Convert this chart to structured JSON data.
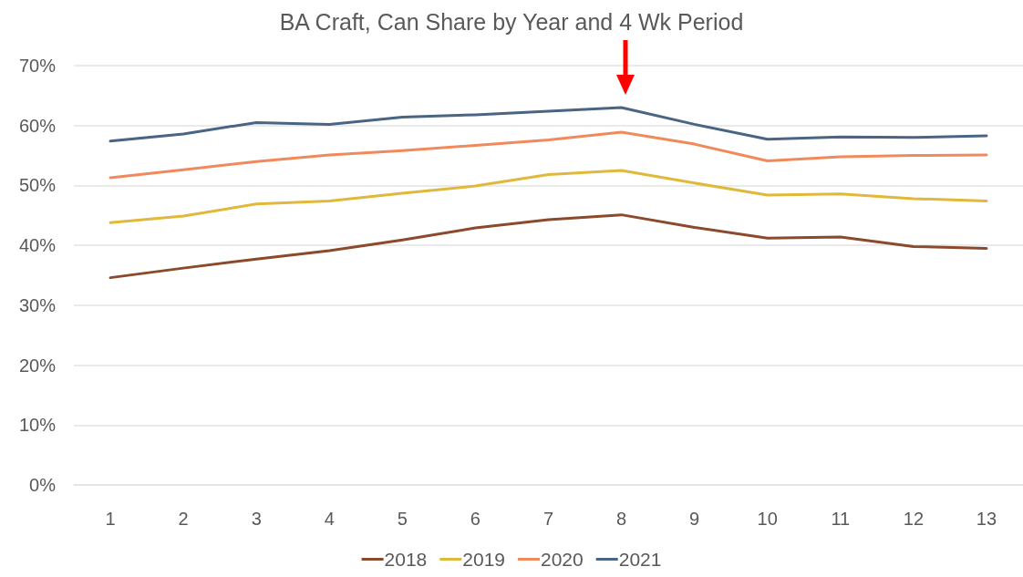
{
  "chart_data": {
    "type": "line",
    "title": "BA Craft, Can Share by Year and 4 Wk Period",
    "x": [
      1,
      2,
      3,
      4,
      5,
      6,
      7,
      8,
      9,
      10,
      11,
      12,
      13
    ],
    "series": [
      {
        "name": "2018",
        "color": "#8b4a2b",
        "values": [
          34.6,
          36.2,
          37.7,
          39.1,
          40.9,
          42.9,
          44.3,
          45.1,
          43.0,
          41.2,
          41.4,
          39.8,
          39.5
        ]
      },
      {
        "name": "2019",
        "color": "#e0b83c",
        "values": [
          43.8,
          44.9,
          46.9,
          47.4,
          48.7,
          49.9,
          51.8,
          52.5,
          50.4,
          48.4,
          48.6,
          47.8,
          47.4
        ]
      },
      {
        "name": "2020",
        "color": "#f08a5d",
        "values": [
          51.3,
          52.6,
          54.0,
          55.1,
          55.8,
          56.7,
          57.6,
          58.9,
          56.9,
          54.1,
          54.8,
          55.0,
          55.1
        ]
      },
      {
        "name": "2021",
        "color": "#4a6584",
        "values": [
          57.4,
          58.6,
          60.5,
          60.2,
          61.4,
          61.8,
          62.4,
          63.0,
          60.2,
          57.7,
          58.1,
          58.0,
          58.3
        ]
      }
    ],
    "xlim": [
      0.5,
      13.5
    ],
    "xticks": [
      1,
      2,
      3,
      4,
      5,
      6,
      7,
      8,
      9,
      10,
      11,
      12,
      13
    ],
    "ylim": [
      0,
      70
    ],
    "yticks": [
      {
        "value": 0,
        "label": "0%"
      },
      {
        "value": 10,
        "label": "10%"
      },
      {
        "value": 20,
        "label": "20%"
      },
      {
        "value": 30,
        "label": "30%"
      },
      {
        "value": 40,
        "label": "40%"
      },
      {
        "value": 50,
        "label": "50%"
      },
      {
        "value": 60,
        "label": "60%"
      },
      {
        "value": 70,
        "label": "70%"
      }
    ],
    "grid": "y",
    "legend": "bottom",
    "marker": "none",
    "line_style": "solid"
  }
}
